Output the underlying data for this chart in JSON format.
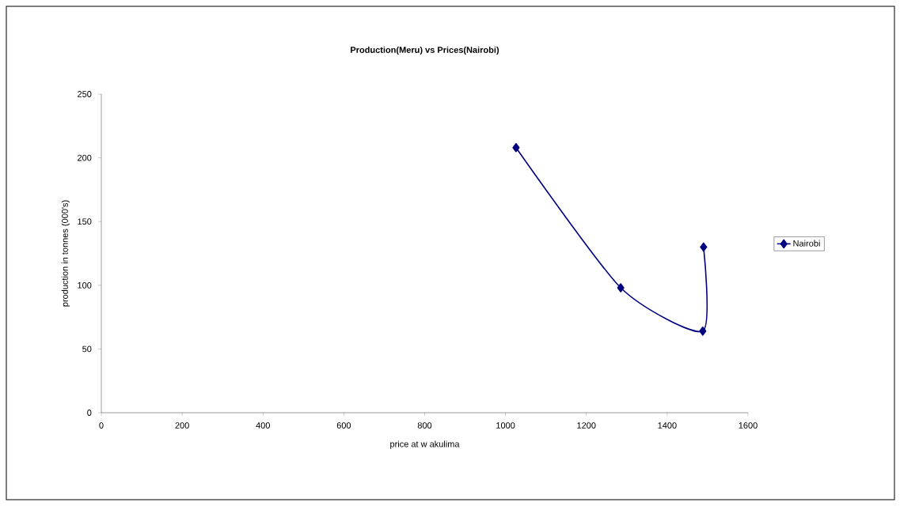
{
  "chart_data": {
    "type": "line",
    "title": "Production(Meru) vs Prices(Nairobi)",
    "xlabel": "price at w akulima",
    "ylabel": "production in tonnes (000's)",
    "series": [
      {
        "name": "Nairobi",
        "color": "#000080",
        "x": [
          1026,
          1285,
          1488,
          1490
        ],
        "values": [
          208,
          98,
          64,
          130
        ]
      }
    ],
    "xlim": [
      0,
      1600
    ],
    "xticks": [
      0,
      200,
      400,
      600,
      800,
      1000,
      1200,
      1400,
      1600
    ],
    "ylim": [
      0,
      250
    ],
    "yticks": [
      0,
      50,
      100,
      150,
      200,
      250
    ],
    "legend": "right",
    "marker": "diamond",
    "line_style": "solid",
    "grid": false
  }
}
